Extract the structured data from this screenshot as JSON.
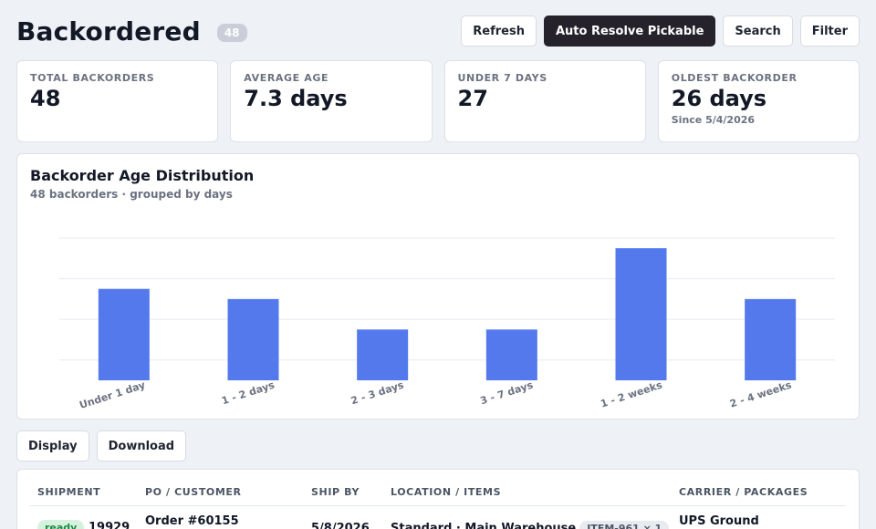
{
  "header": {
    "title": "Backordered",
    "count_badge": "48",
    "actions": {
      "refresh": "Refresh",
      "auto_resolve": "Auto Resolve Pickable",
      "search": "Search",
      "filter": "Filter"
    }
  },
  "stats": [
    {
      "label": "TOTAL BACKORDERS",
      "value": "48",
      "sub": ""
    },
    {
      "label": "AVERAGE AGE",
      "value": "7.3 days",
      "sub": ""
    },
    {
      "label": "UNDER 7 DAYS",
      "value": "27",
      "sub": ""
    },
    {
      "label": "OLDEST BACKORDER",
      "value": "26 days",
      "sub": "Since 5/4/2026"
    }
  ],
  "chart": {
    "title": "Backorder Age Distribution",
    "subtitle": "48 backorders · grouped by days"
  },
  "chart_data": {
    "type": "bar",
    "title": "Backorder Age Distribution",
    "subtitle": "48 backorders · grouped by days",
    "categories": [
      "Under 1 day",
      "1 - 2 days",
      "2 - 3 days",
      "3 - 7 days",
      "1 - 2 weeks",
      "2 - 4 weeks"
    ],
    "values": [
      9,
      8,
      5,
      5,
      13,
      8
    ],
    "xlabel": "",
    "ylabel": "",
    "ylim": [
      0,
      14
    ],
    "grid": true,
    "bar_color": "#5479ed"
  },
  "toolbar": {
    "display": "Display",
    "download": "Download"
  },
  "table": {
    "columns": [
      "SHIPMENT",
      "PO / CUSTOMER",
      "SHIP BY",
      "LOCATION / ITEMS",
      "CARRIER / PACKAGES"
    ],
    "rows": [
      {
        "status": "ready",
        "shipment": "19929",
        "po": "Order #60155",
        "ship_by": "5/8/2026",
        "location": "Standard · Main Warehouse",
        "item_chip": "ITEM-961 × 1",
        "carrier": "UPS Ground"
      }
    ]
  },
  "colors": {
    "accent": "#5479ed",
    "primary_button": "#26222b",
    "ready_badge_bg": "#d6f2de",
    "ready_badge_text": "#1d8a45"
  }
}
